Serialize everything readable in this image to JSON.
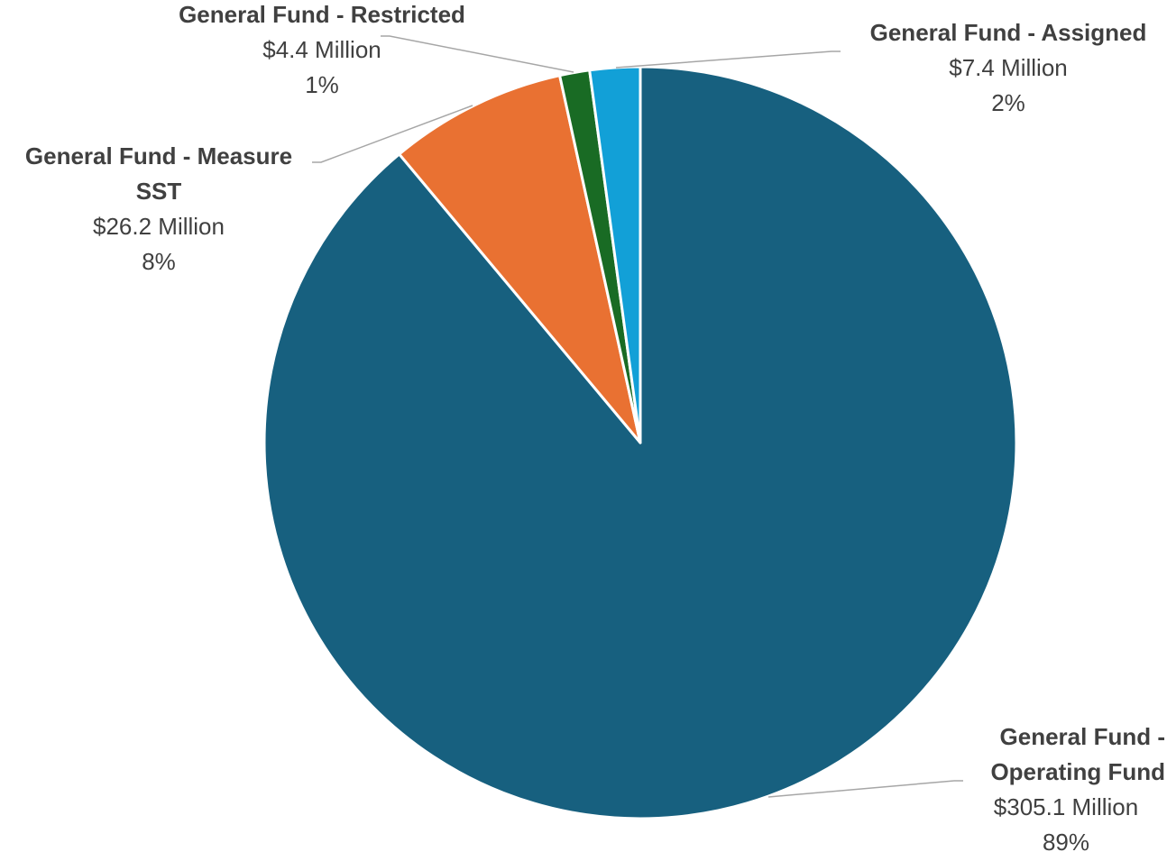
{
  "chart_data": {
    "type": "pie",
    "title": "",
    "start_angle_deg": 0,
    "direction": "clockwise",
    "slices": [
      {
        "name": "General Fund - Operating Fund",
        "label_lines": [
          "General Fund -",
          "Operating Fund"
        ],
        "value_label": "$305.1 Million",
        "percent_label": "89%",
        "value": 305.1,
        "color": "#17607f"
      },
      {
        "name": "General Fund - Measure SST",
        "label_lines": [
          "General Fund - Measure",
          "SST"
        ],
        "value_label": "$26.2 Million",
        "percent_label": "8%",
        "value": 26.2,
        "color": "#e97132"
      },
      {
        "name": "General Fund - Restricted",
        "label_lines": [
          "General Fund - Restricted"
        ],
        "value_label": "$4.4 Million",
        "percent_label": "1%",
        "value": 4.4,
        "color": "#196b24"
      },
      {
        "name": "General Fund - Assigned",
        "label_lines": [
          "General Fund - Assigned"
        ],
        "value_label": "$7.4 Million",
        "percent_label": "2%",
        "value": 7.4,
        "color": "#12a0d7"
      }
    ]
  }
}
